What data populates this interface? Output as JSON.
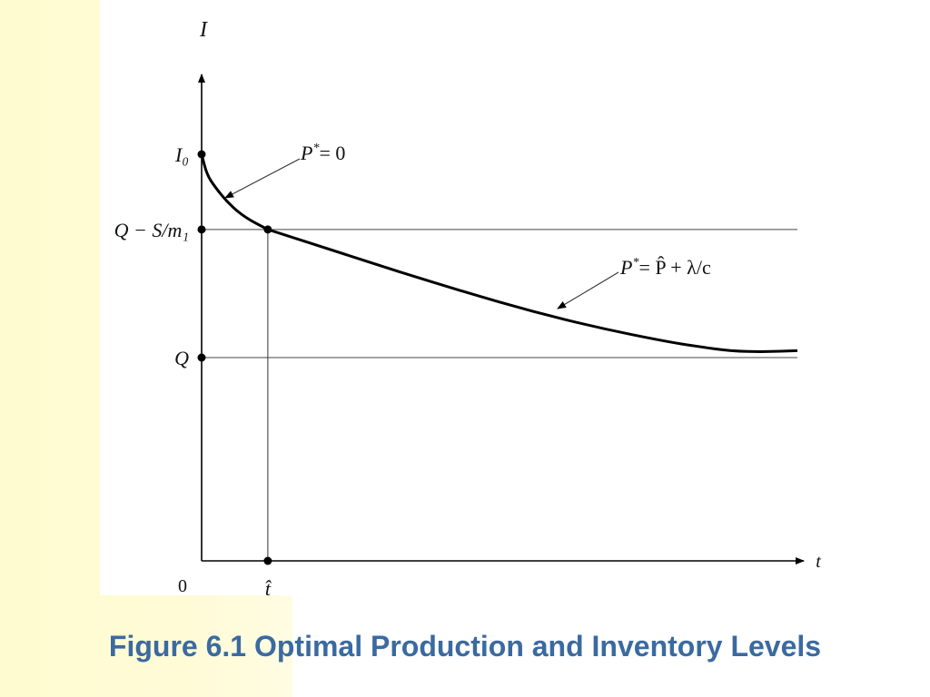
{
  "caption": "Figure 6.1 Optimal Production and Inventory Levels",
  "colors": {
    "caption": "#3a6aa0",
    "band": "#fffbd6"
  },
  "chart_data": {
    "type": "line",
    "title": "",
    "xlabel": "t",
    "ylabel": "I",
    "origin_label": "0",
    "x_ticks": [
      {
        "label": "t̂",
        "value": 1
      }
    ],
    "y_ticks": [
      {
        "label": "I₀",
        "value": 1.0
      },
      {
        "label": "Q − S/m₁",
        "value": 0.815
      },
      {
        "label": "Q",
        "value": 0.5
      }
    ],
    "xlim": [
      0,
      9.0
    ],
    "ylim": [
      0,
      1.0
    ],
    "series": [
      {
        "name": "",
        "segments": [
          {
            "label": "P* = 0",
            "x": [
              0,
              0.08,
              0.2,
              0.4,
              0.65,
              1.0
            ],
            "y": [
              1.0,
              0.95,
              0.92,
              0.88,
              0.845,
              0.815
            ]
          },
          {
            "label": "P* = P̂ + λ/c",
            "x": [
              1.0,
              2,
              3,
              4,
              5,
              6,
              7,
              7.5,
              8,
              8.5,
              9.0
            ],
            "y": [
              0.815,
              0.763,
              0.71,
              0.66,
              0.613,
              0.573,
              0.54,
              0.527,
              0.516,
              0.514,
              0.517
            ]
          }
        ]
      }
    ],
    "horizontal_lines": [
      0.815,
      0.5
    ],
    "vertical_lines": [
      1
    ],
    "annotations": [
      {
        "text_base": "P",
        "text_sup": "*",
        "text_rest": "= 0",
        "points_to": "segment_1"
      },
      {
        "text_base": "P",
        "text_sup": "*",
        "text_rest": "= P̂ + λ/c",
        "points_to": "segment_2"
      }
    ],
    "grid": false
  }
}
